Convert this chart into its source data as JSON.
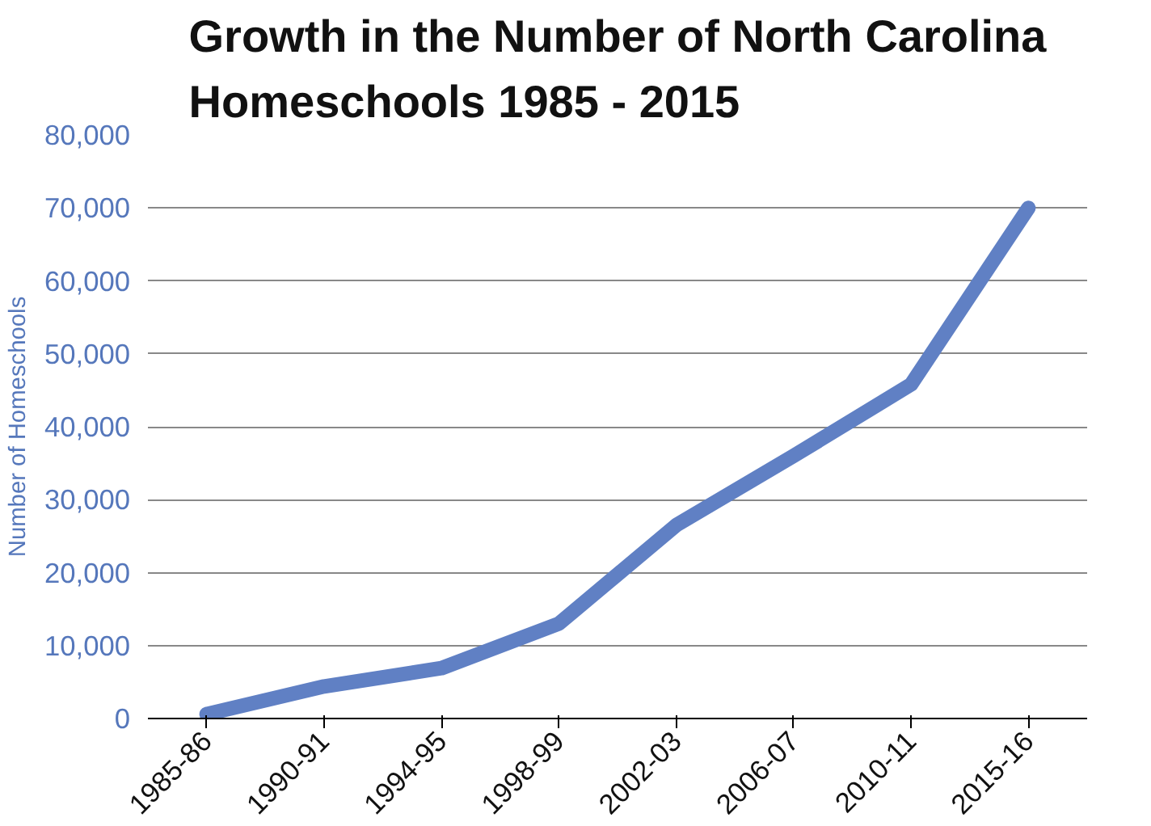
{
  "chart_data": {
    "type": "line",
    "title": "Growth in the Number of North Carolina Homeschools 1985 - 2015",
    "ylabel": "Number of Homeschools",
    "categories": [
      "1985-86",
      "1990-91",
      "1994-95",
      "1998-99",
      "2002-03",
      "2006-07",
      "2010-11",
      "2015-16"
    ],
    "series": [
      {
        "color": "#6080c4",
        "values": [
          600,
          4400,
          6900,
          13000,
          26500,
          36000,
          45800,
          70000
        ]
      }
    ],
    "ylim": [
      0,
      80000
    ],
    "yticks": [
      {
        "value": 0,
        "label": "0"
      },
      {
        "value": 10000,
        "label": "10,000"
      },
      {
        "value": 20000,
        "label": "20,000"
      },
      {
        "value": 30000,
        "label": "30,000"
      },
      {
        "value": 40000,
        "label": "40,000"
      },
      {
        "value": 50000,
        "label": "50,000"
      },
      {
        "value": 60000,
        "label": "60,000"
      },
      {
        "value": 70000,
        "label": "70,000"
      },
      {
        "value": 80000,
        "label": "80,000"
      }
    ],
    "grid": "y",
    "marker": "none",
    "line_style": "solid"
  }
}
